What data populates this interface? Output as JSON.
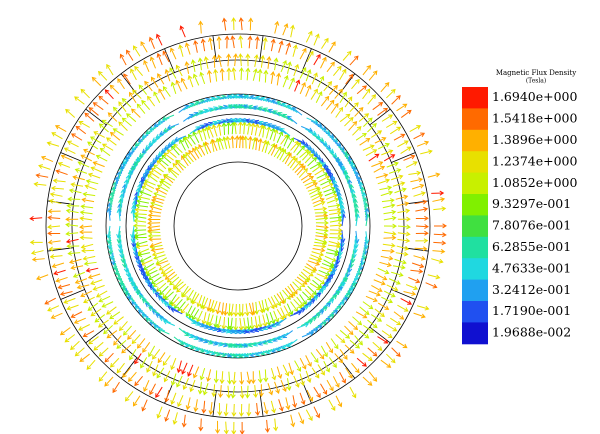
{
  "legend": {
    "title": "Magnetic Flux Density",
    "unit": "(Tesla)",
    "labels": [
      "1.6940e+000",
      "1.5418e+000",
      "1.3896e+000",
      "1.2374e+000",
      "1.0852e+000",
      "9.3297e-001",
      "7.8076e-001",
      "6.2855e-001",
      "4.7633e-001",
      "3.2412e-001",
      "1.7190e-001",
      "1.9688e-002"
    ]
  }
}
